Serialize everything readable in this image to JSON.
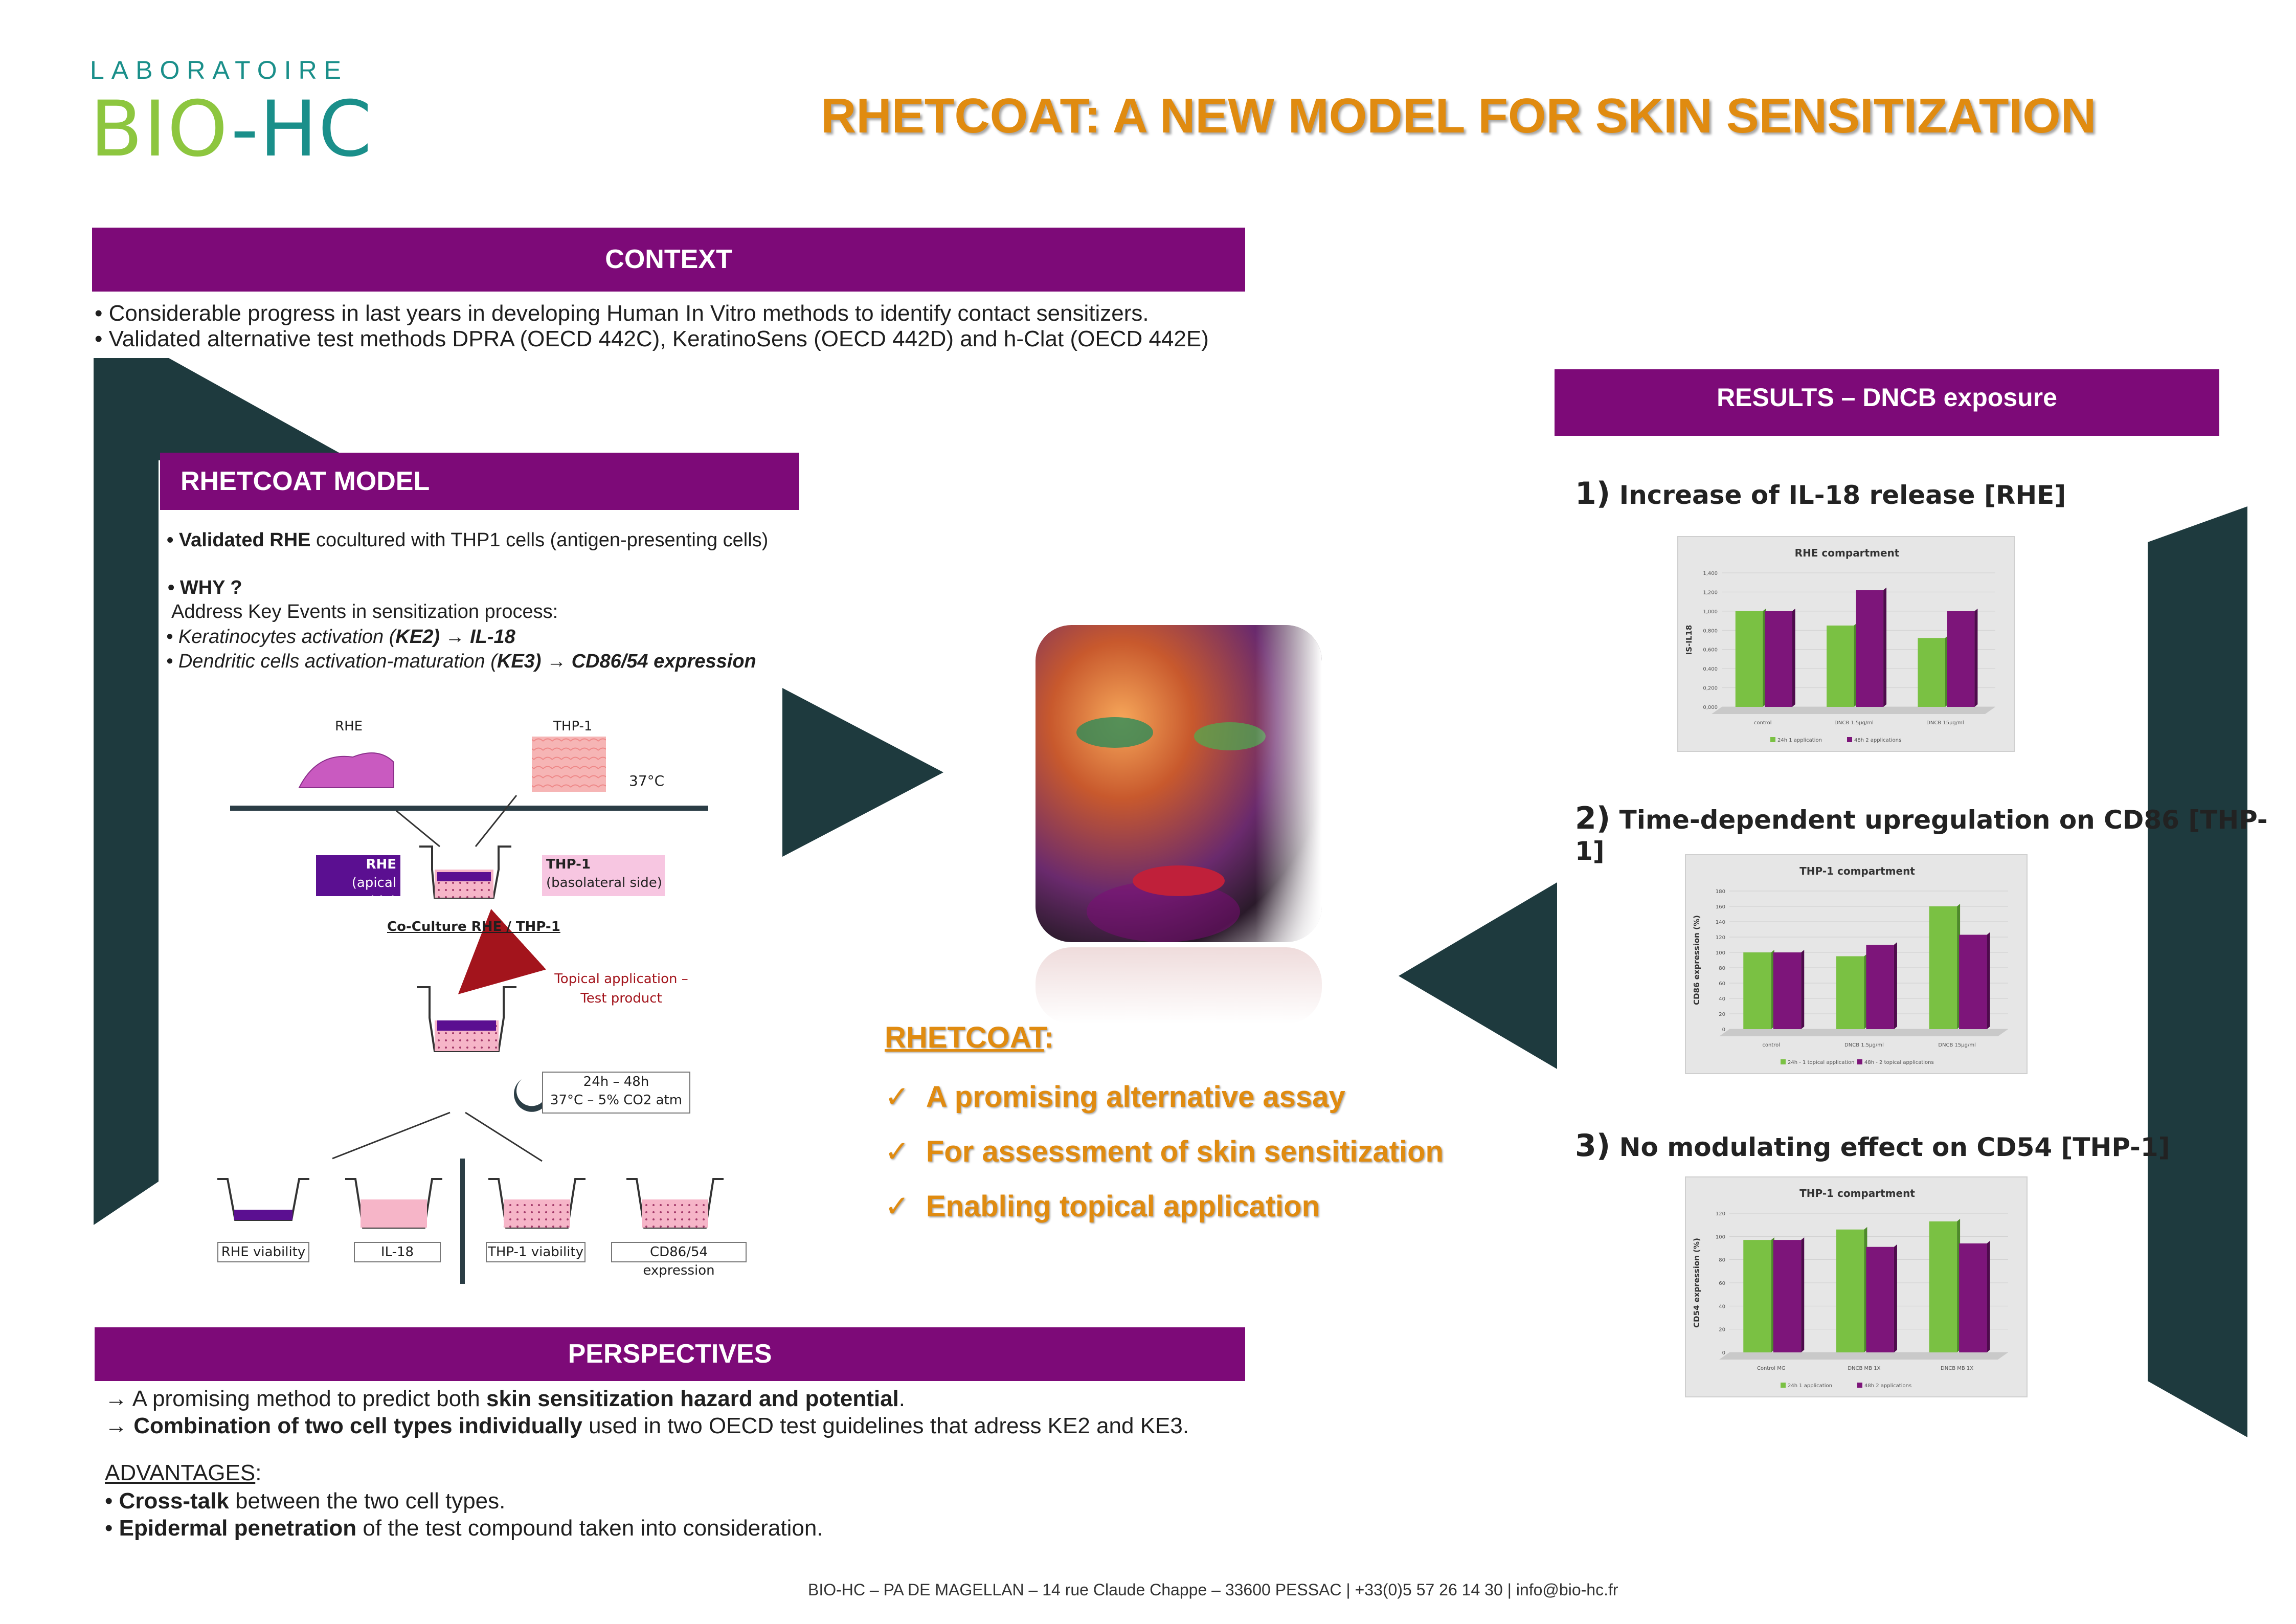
{
  "logo": {
    "top": "LABORATOIRE",
    "brand": "BIO-HC"
  },
  "title": "RHETCOAT: A NEW MODEL FOR SKIN SENSITIZATION",
  "colors": {
    "purple": "#7d0a78",
    "dark_teal": "#1e3a3e",
    "orange": "#e08b10",
    "green": "#8dc63f",
    "teal": "#1a8f8a",
    "bar_green": "#7ac143",
    "bar_purple": "#7d157a"
  },
  "context": {
    "header": "CONTEXT",
    "lines": [
      "• Considerable progress in last years in developing Human In Vitro methods to identify contact sensitizers.",
      "• Validated alternative test methods DPRA (OECD 442C), KeratinoSens (OECD 442D) and h-Clat (OECD 442E)"
    ]
  },
  "model": {
    "header": "RHETCOAT  MODEL",
    "validated_bold": "• Validated RHE",
    "validated_rest": " cocultured with THP1 cells (antigen-presenting cells)",
    "why": "•  WHY ?",
    "address": "Address Key Events in sensitization process:",
    "ke2_pre": "• Keratinocytes activation (",
    "ke2_bold": "KE2) → IL-18",
    "ke3_pre": "• Dendritic cells activation-maturation (",
    "ke3_bold": "KE3)  → CD86/54 expression"
  },
  "diagram": {
    "rhe": "RHE",
    "thp1": "THP-1",
    "temp": "37°C",
    "rhe_box_title": "RHE",
    "rhe_box_sub": "(apical side)",
    "thp_box_title": "THP-1",
    "thp_box_sub": "(basolateral side)",
    "coculture": "Co-Culture RHE / THP-1",
    "topical_1": "Topical application –",
    "topical_2": "Test product",
    "incub_1": "24h – 48h",
    "incub_2": "37°C – 5% CO2 atm",
    "out1": "RHE viability",
    "out2": "IL-18",
    "out3": "THP-1 viability",
    "out4": "CD86/54 expression"
  },
  "center": {
    "heading": "RHETCOAT",
    "colon": ":",
    "check": "✓",
    "points": [
      "A promising alternative assay",
      "For assessment of skin sensitization",
      "Enabling topical application"
    ]
  },
  "results": {
    "header": "RESULTS – DNCB exposure",
    "items": [
      {
        "num": "1)",
        "text": "Increase of IL-18 release [RHE]"
      },
      {
        "num": "2)",
        "text": "Time-dependent upregulation on CD86 [THP-1]"
      },
      {
        "num": "3)",
        "text": "No modulating effect on CD54 [THP-1]"
      }
    ]
  },
  "chart_data": [
    {
      "type": "bar",
      "title": "RHE compartment",
      "ylabel": "IS-IL18",
      "ylim": [
        0,
        1.4
      ],
      "yticks": [
        "0,000",
        "0,200",
        "0,400",
        "0,600",
        "0,800",
        "1,000",
        "1,200",
        "1,400"
      ],
      "categories": [
        "control",
        "DNCB 1.5µg/ml",
        "DNCB 15µg/ml"
      ],
      "series": [
        {
          "name": "24h 1 application",
          "values": [
            1.0,
            0.85,
            0.72
          ]
        },
        {
          "name": "48h 2 applications",
          "values": [
            1.0,
            1.22,
            1.0
          ]
        }
      ]
    },
    {
      "type": "bar",
      "title": "THP-1 compartment",
      "ylabel": "CD86 expression (%)",
      "ylim": [
        0,
        180
      ],
      "yticks": [
        "0",
        "20",
        "40",
        "60",
        "80",
        "100",
        "120",
        "140",
        "160",
        "180"
      ],
      "categories": [
        "control",
        "DNCB 1.5µg/ml",
        "DNCB 15µg/ml"
      ],
      "series": [
        {
          "name": "24h - 1 topical application",
          "values": [
            100,
            95,
            160
          ]
        },
        {
          "name": "48h - 2 topical applications",
          "values": [
            100,
            110,
            123
          ]
        }
      ]
    },
    {
      "type": "bar",
      "title": "THP-1 compartment",
      "ylabel": "CD54 expression (%)",
      "ylim": [
        0,
        120
      ],
      "yticks": [
        "0",
        "20",
        "40",
        "60",
        "80",
        "100",
        "120"
      ],
      "categories": [
        "Control MG",
        "DNCB MB 1X",
        "DNCB MB 1X"
      ],
      "series": [
        {
          "name": "24h 1 application",
          "values": [
            97,
            106,
            113
          ]
        },
        {
          "name": "48h 2 applications",
          "values": [
            97,
            91,
            94
          ]
        }
      ]
    }
  ],
  "perspectives": {
    "header": "PERSPECTIVES",
    "l1_pre": "→ A promising method to predict both ",
    "l1_bold": "skin sensitization hazard and potential",
    "l1_post": ".",
    "l2_pre": "→ ",
    "l2_bold": "Combination of two cell types individually",
    "l2_post": " used in two OECD test guidelines that adress KE2 and KE3.",
    "adv": "ADVANTAGES",
    "adv_colon": ":",
    "a1_bold": "Cross-talk",
    "a1_rest": " between the two cell types.",
    "a2_bold": "Epidermal penetration",
    "a2_rest": " of the test compound taken into consideration.",
    "bullet": "• "
  },
  "footer": "BIO-HC – PA DE MAGELLAN – 14 rue Claude Chappe – 33600 PESSAC | +33(0)5 57 26 14 30 | info@bio-hc.fr"
}
